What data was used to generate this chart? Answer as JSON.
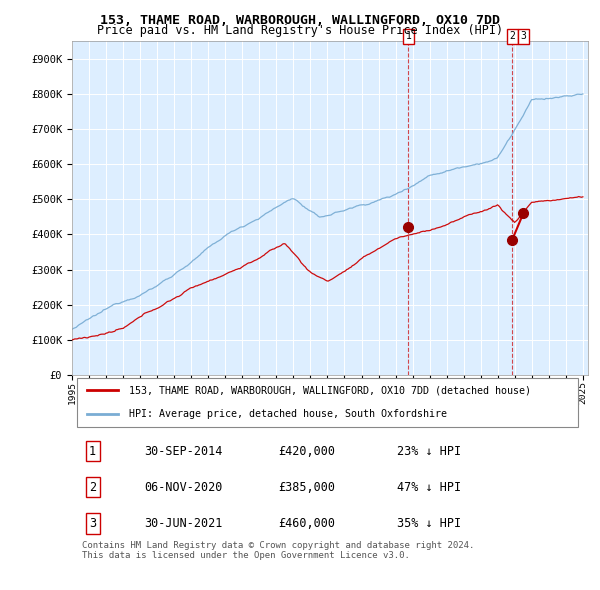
{
  "title": "153, THAME ROAD, WARBOROUGH, WALLINGFORD, OX10 7DD",
  "subtitle": "Price paid vs. HM Land Registry's House Price Index (HPI)",
  "red_label": "153, THAME ROAD, WARBOROUGH, WALLINGFORD, OX10 7DD (detached house)",
  "blue_label": "HPI: Average price, detached house, South Oxfordshire",
  "transactions": [
    {
      "num": 1,
      "date": "30-SEP-2014",
      "price": 420000,
      "pct": "23%",
      "dir": "↓",
      "year_x": 2014.75
    },
    {
      "num": 2,
      "date": "06-NOV-2020",
      "price": 385000,
      "pct": "47%",
      "dir": "↓",
      "year_x": 2020.85
    },
    {
      "num": 3,
      "date": "30-JUN-2021",
      "price": 460000,
      "pct": "35%",
      "dir": "↓",
      "year_x": 2021.5
    }
  ],
  "footer": "Contains HM Land Registry data © Crown copyright and database right 2024.\nThis data is licensed under the Open Government Licence v3.0.",
  "ylim": [
    0,
    950000
  ],
  "yticks": [
    0,
    100000,
    200000,
    300000,
    400000,
    500000,
    600000,
    700000,
    800000,
    900000
  ],
  "ytick_labels": [
    "£0",
    "£100K",
    "£200K",
    "£300K",
    "£400K",
    "£500K",
    "£600K",
    "£700K",
    "£800K",
    "£900K"
  ],
  "bg_color": "#ddeeff",
  "red_color": "#cc0000",
  "blue_color": "#7aadd4",
  "grid_color": "#ffffff",
  "vline_color": "#cc0000",
  "dot_color": "#990000",
  "xlim_left": 1995,
  "xlim_right": 2025.3
}
